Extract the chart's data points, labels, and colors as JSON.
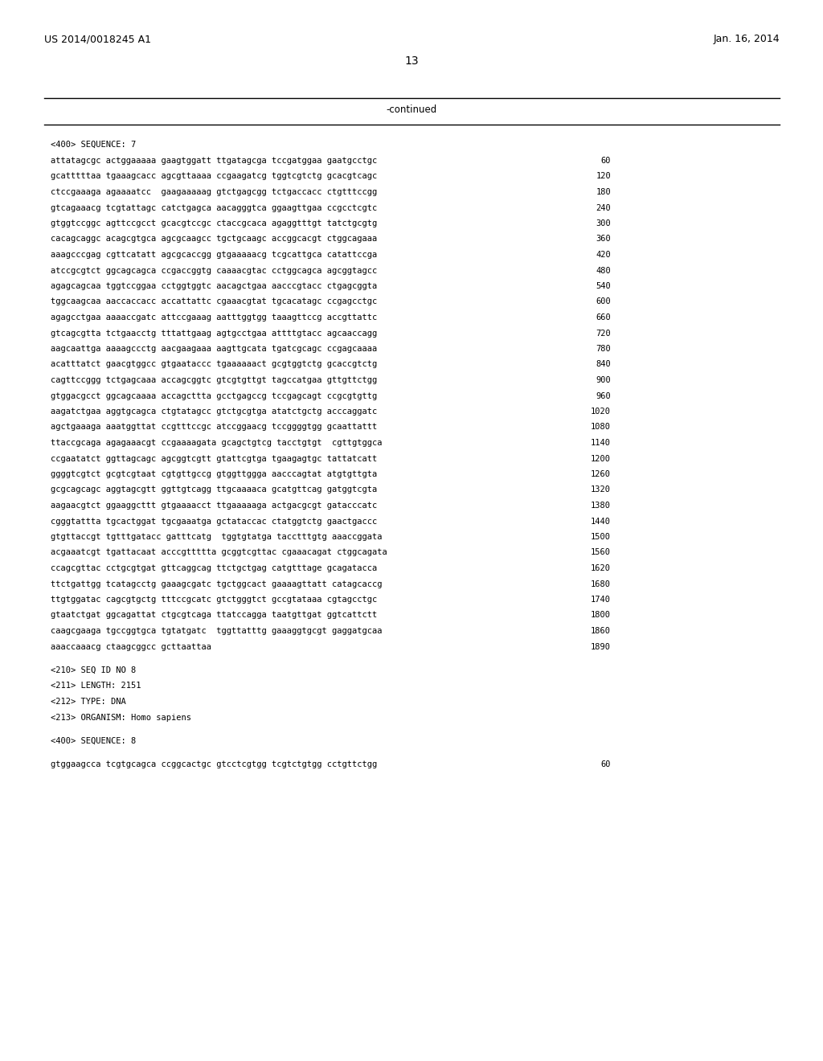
{
  "header_left": "US 2014/0018245 A1",
  "header_right": "Jan. 16, 2014",
  "page_number": "13",
  "continued_text": "-continued",
  "bg_color": "#ffffff",
  "text_color": "#000000",
  "mono_font_size": 7.5,
  "header_font_size": 9.0,
  "page_num_font_size": 10.0,
  "sequence_block": [
    {
      "tag": "<400> SEQUENCE: 7",
      "is_header": true
    },
    {
      "seq": "attatagcgc actggaaaaa gaagtggatt ttgatagcga tccgatggaa gaatgcctgc",
      "num": "60"
    },
    {
      "seq": "gcatttttaa tgaaagcacc agcgttaaaa ccgaagatcg tggtcgtctg gcacgtcagc",
      "num": "120"
    },
    {
      "seq": "ctccgaaaga agaaaatcc  gaagaaaaag gtctgagcgg tctgaccacc ctgtttccgg",
      "num": "180"
    },
    {
      "seq": "gtcagaaacg tcgtattagc catctgagca aacagggtca ggaagttgaa ccgcctcgtc",
      "num": "240"
    },
    {
      "seq": "gtggtccggc agttccgcct gcacgtccgc ctaccgcaca agaggtttgt tatctgcgtg",
      "num": "300"
    },
    {
      "seq": "cacagcaggc acagcgtgca agcgcaagcc tgctgcaagc accggcacgt ctggcagaaa",
      "num": "360"
    },
    {
      "seq": "aaagcccgag cgttcatatt agcgcaccgg gtgaaaaacg tcgcattgca catattccga",
      "num": "420"
    },
    {
      "seq": "atccgcgtct ggcagcagca ccgaccggtg caaaacgtac cctggcagca agcggtagcc",
      "num": "480"
    },
    {
      "seq": "agagcagcaa tggtccggaa cctggtggtc aacagctgaa aacccgtacc ctgagcggta",
      "num": "540"
    },
    {
      "seq": "tggcaagcaa aaccaccacc accattattc cgaaacgtat tgcacatagc ccgagcctgc",
      "num": "600"
    },
    {
      "seq": "agagcctgaa aaaaccgatc attccgaaag aatttggtgg taaagttccg accgttattc",
      "num": "660"
    },
    {
      "seq": "gtcagcgtta tctgaacctg tttattgaag agtgcctgaa attttgtacc agcaaccagg",
      "num": "720"
    },
    {
      "seq": "aagcaattga aaaagccctg aacgaagaaa aagttgcata tgatcgcagc ccgagcaaaa",
      "num": "780"
    },
    {
      "seq": "acatttatct gaacgtggcc gtgaataccc tgaaaaaact gcgtggtctg gcaccgtctg",
      "num": "840"
    },
    {
      "seq": "cagttccggg tctgagcaaa accagcggtc gtcgtgttgt tagccatgaa gttgttctgg",
      "num": "900"
    },
    {
      "seq": "gtggacgcct ggcagcaaaa accagcttta gcctgagccg tccgagcagt ccgcgtgttg",
      "num": "960"
    },
    {
      "seq": "aagatctgaa aggtgcagca ctgtatagcc gtctgcgtga atatctgctg acccaggatc",
      "num": "1020"
    },
    {
      "seq": "agctgaaaga aaatggttat ccgtttccgc atccggaacg tccggggtgg gcaattattt",
      "num": "1080"
    },
    {
      "seq": "ttaccgcaga agagaaacgt ccgaaaagata gcagctgtcg tacctgtgt  cgttgtggca",
      "num": "1140"
    },
    {
      "seq": "ccgaatatct ggttagcagc agcggtcgtt gtattcgtga tgaagagtgc tattatcatt",
      "num": "1200"
    },
    {
      "seq": "ggggtcgtct gcgtcgtaat cgtgttgccg gtggttggga aacccagtat atgtgttgta",
      "num": "1260"
    },
    {
      "seq": "gcgcagcagc aggtagcgtt ggttgtcagg ttgcaaaaca gcatgttcag gatggtcgta",
      "num": "1320"
    },
    {
      "seq": "aagaacgtct ggaaggcttt gtgaaaacct ttgaaaaaga actgacgcgt gatacccatc",
      "num": "1380"
    },
    {
      "seq": "cgggtattta tgcactggat tgcgaaatga gctataccac ctatggtctg gaactgaccc",
      "num": "1440"
    },
    {
      "seq": "gtgttaccgt tgtttgatacc gatttcatg  tggtgtatga tacctttgtg aaaccggata",
      "num": "1500"
    },
    {
      "seq": "acgaaatcgt tgattacaat acccgttttta gcggtcgttac cgaaacagat ctggcagata",
      "num": "1560"
    },
    {
      "seq": "ccagcgttac cctgcgtgat gttcaggcag ttctgctgag catgtttage gcagatacca",
      "num": "1620"
    },
    {
      "seq": "ttctgattgg tcatagcctg gaaagcgatc tgctggcact gaaaagttatt catagcaccg",
      "num": "1680"
    },
    {
      "seq": "ttgtggatac cagcgtgctg tttccgcatc gtctgggtct gccgtataaa cgtagcctgc",
      "num": "1740"
    },
    {
      "seq": "gtaatctgat ggcagattat ctgcgtcaga ttatccagga taatgttgat ggtcattctt",
      "num": "1800"
    },
    {
      "seq": "caagcgaaga tgccggtgca tgtatgatc  tggttatttg gaaaggtgcgt gaggatgcaa",
      "num": "1860"
    },
    {
      "seq": "aaaccaaacg ctaagcggcc gcttaattaa",
      "num": "1890"
    }
  ],
  "seq8_header": [
    "<210> SEQ ID NO 8",
    "<211> LENGTH: 2151",
    "<212> TYPE: DNA",
    "<213> ORGANISM: Homo sapiens"
  ],
  "seq8_400": "<400> SEQUENCE: 8",
  "seq8_first": {
    "seq": "gtggaagcca tcgtgcagca ccggcactgc gtcctcgtgg tcgtctgtgg cctgttctgg",
    "num": "60"
  }
}
